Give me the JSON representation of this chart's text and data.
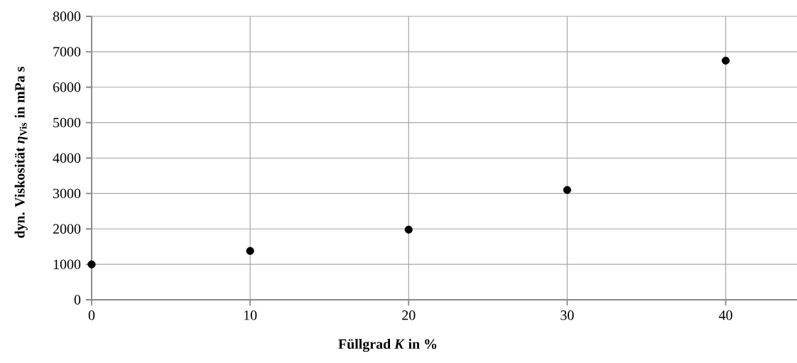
{
  "chart_data": {
    "type": "scatter",
    "xlabel": "Füllgrad *K* in %",
    "ylabel": "dyn. Viskosität *η*$_{Vis}$ in mPa s",
    "x": [
      0,
      10,
      20,
      30,
      40
    ],
    "values": [
      1000,
      1380,
      1980,
      3100,
      6750
    ],
    "color": "#000000",
    "marker": "circle",
    "xlim": [
      0,
      44.5
    ],
    "ylim": [
      0,
      8000
    ],
    "xticks": [
      0,
      10,
      20,
      30,
      40
    ],
    "yticks": [
      0,
      1000,
      2000,
      3000,
      4000,
      5000,
      6000,
      7000,
      8000
    ],
    "grid": true
  }
}
